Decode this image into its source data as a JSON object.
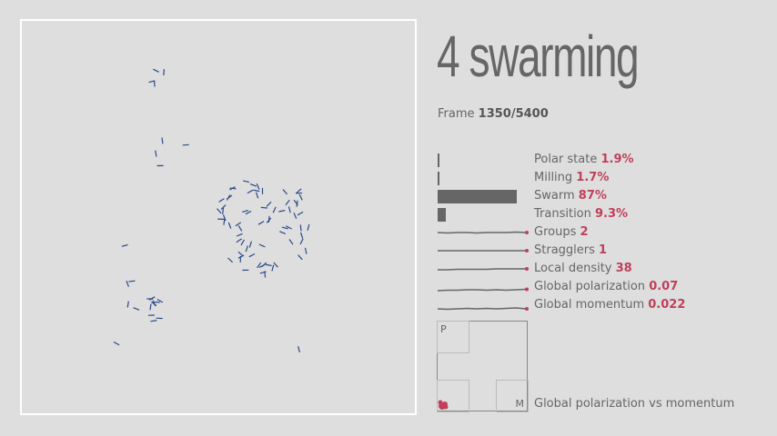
{
  "title": "4 swarming",
  "frame": {
    "label": "Frame",
    "value": "1350/5400"
  },
  "metrics": [
    {
      "label": "Polar state",
      "value": "1.9%",
      "kind": "bar",
      "fraction": 0.019
    },
    {
      "label": "Milling",
      "value": "1.7%",
      "kind": "bar",
      "fraction": 0.017
    },
    {
      "label": "Swarm",
      "value": "87%",
      "kind": "bar",
      "fraction": 0.87
    },
    {
      "label": "Transition",
      "value": "9.3%",
      "kind": "bar",
      "fraction": 0.093
    },
    {
      "label": "Groups",
      "value": "2",
      "kind": "spark"
    },
    {
      "label": "Stragglers",
      "value": "1",
      "kind": "spark"
    },
    {
      "label": "Local density",
      "value": "38",
      "kind": "spark"
    },
    {
      "label": "Global polarization",
      "value": "0.07",
      "kind": "spark"
    },
    {
      "label": "Global momentum",
      "value": "0.022",
      "kind": "spark"
    }
  ],
  "phase_plot": {
    "label": "Global polarization vs momentum",
    "y_corner": "P",
    "x_corner": "M"
  },
  "colors": {
    "agent": "#2a4a8a",
    "accent": "#c0405a",
    "bar": "#666666"
  }
}
